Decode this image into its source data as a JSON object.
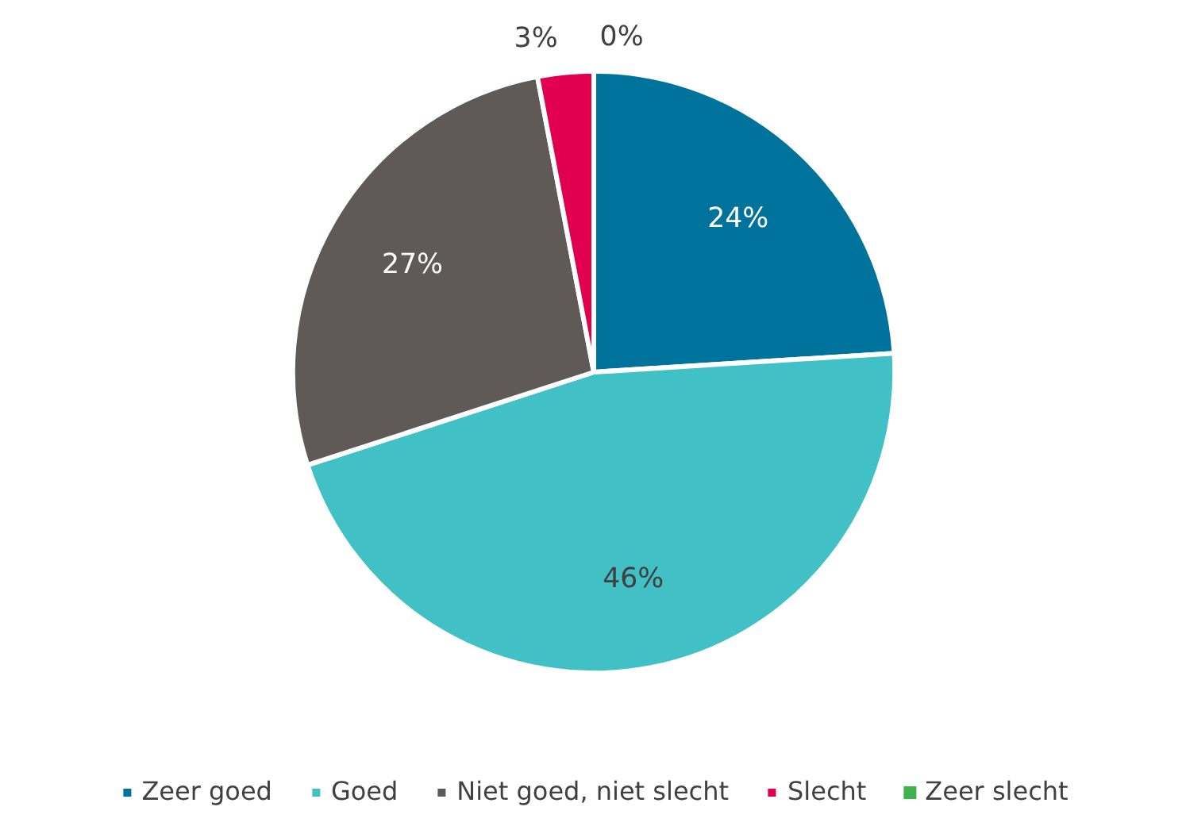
{
  "chart_data": {
    "type": "pie",
    "categories": [
      "Zeer goed",
      "Goed",
      "Niet goed, niet slecht",
      "Slecht",
      "Zeer slecht"
    ],
    "values": [
      24,
      46,
      27,
      3,
      0
    ],
    "colors": [
      "#00739c",
      "#41c1c6",
      "#5f5a57",
      "#e0004d",
      "#3cb44b"
    ],
    "value_labels": [
      "24%",
      "46%",
      "27%",
      "3%",
      "0%"
    ],
    "legend": "bottom"
  }
}
